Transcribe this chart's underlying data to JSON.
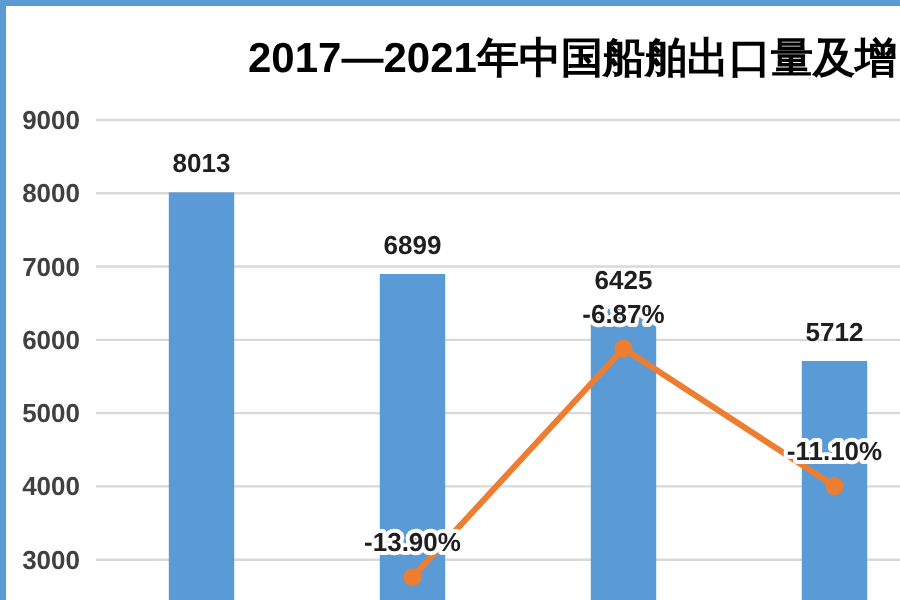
{
  "chart_data": {
    "type": "bar",
    "title": "2017—2021年中国船舶出口量及增",
    "categories": [
      null,
      null,
      null,
      null
    ],
    "series": [
      {
        "color": "#5b9bd5",
        "values": [
          8013,
          6899,
          6425,
          5712
        ],
        "value_labels": [
          "8013",
          "6899",
          "6425",
          "5712"
        ]
      },
      {
        "type": "line",
        "axis": "y2",
        "color": "#ed7d31",
        "marker": "circle",
        "values": [
          null,
          -13.9,
          -6.87,
          -11.1
        ],
        "value_labels": [
          null,
          "-13.90%",
          "-6.87%",
          "-11.10%"
        ]
      }
    ],
    "ylim": [
      2450,
      9000
    ],
    "yticks": [
      3000,
      4000,
      5000,
      6000,
      7000,
      8000,
      9000
    ],
    "grid": "y",
    "tick_labels": "y"
  }
}
